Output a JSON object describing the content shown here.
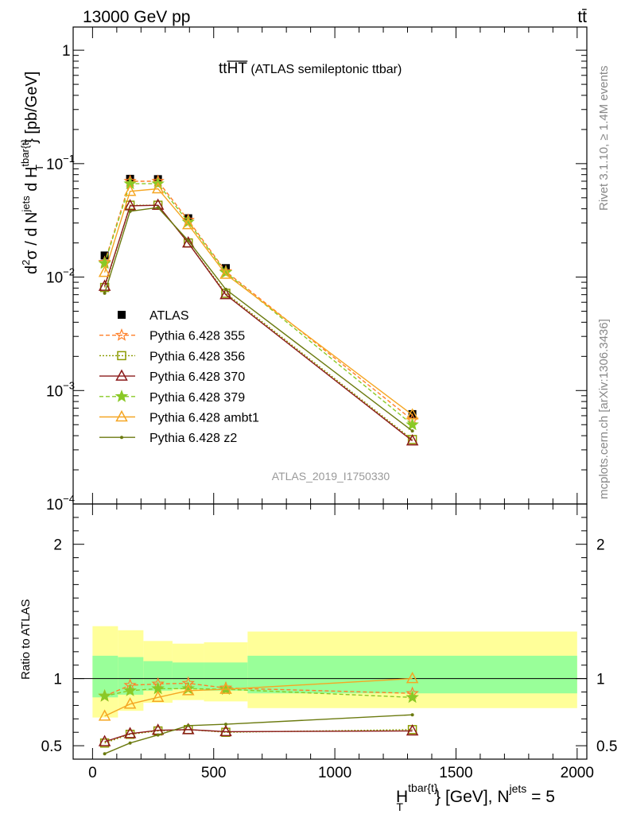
{
  "header": {
    "energy_label": "13000 GeV pp",
    "process_label": "tt̄"
  },
  "side": {
    "rivet_label": "Rivet 3.1.10, ≥ 1.4M events",
    "source_label": "mcplots.cern.ch [arXiv:1306.3436]"
  },
  "chart_data": [
    {
      "type": "line",
      "title": "tt̄HT (ATLAS semileptonic ttbar)",
      "title_main": "tt",
      "title_over": "HT",
      "title_rest": " (ATLAS semileptonic ttbar)",
      "analysis_id": "ATLAS_2019_I1750330",
      "ylabel": "d²σ / d N^jets d H_T^tbar{t} [pb/GeV]",
      "ylabel_parts": [
        "d",
        "2",
        "σ / d N",
        "jets",
        " d H",
        "tbar{t}",
        "T",
        "} [pb/GeV]"
      ],
      "yscale": "log",
      "ylim": [
        0.0001,
        1.6
      ],
      "xlim": [
        -80,
        2040
      ],
      "y_tick_labels": [
        {
          "value": 1,
          "base": "1",
          "exp": ""
        },
        {
          "value": 0.1,
          "base": "10",
          "exp": "−1"
        },
        {
          "value": 0.01,
          "base": "10",
          "exp": "−2"
        },
        {
          "value": 0.001,
          "base": "10",
          "exp": "−3"
        },
        {
          "value": 0.0001,
          "base": "10",
          "exp": "−4"
        }
      ],
      "legend_position": "left-middle",
      "series": [
        {
          "name": "ATLAS",
          "color": "#000000",
          "marker": "square",
          "dash": "none",
          "x": [
            50,
            155,
            270,
            395,
            550,
            1320
          ],
          "y": [
            0.0155,
            0.0735,
            0.073,
            0.033,
            0.012,
            0.00062
          ]
        },
        {
          "name": "Pythia 6.428 355",
          "color": "#ff7f27",
          "marker": "star",
          "dash": "dashed",
          "x": [
            50,
            155,
            270,
            395,
            550,
            1320
          ],
          "y": [
            0.0135,
            0.07,
            0.07,
            0.0318,
            0.0112,
            0.00055
          ]
        },
        {
          "name": "Pythia 6.428 356",
          "color": "#8c9a00",
          "marker": "open-square",
          "dash": "dotted",
          "x": [
            50,
            155,
            270,
            395,
            550,
            1320
          ],
          "y": [
            0.0081,
            0.043,
            0.043,
            0.02,
            0.0072,
            0.00037
          ]
        },
        {
          "name": "Pythia 6.428 370",
          "color": "#8b1a1a",
          "marker": "open-triangle",
          "dash": "solid",
          "x": [
            50,
            155,
            270,
            395,
            550,
            1320
          ],
          "y": [
            0.0083,
            0.0425,
            0.043,
            0.02,
            0.007,
            0.00036
          ]
        },
        {
          "name": "Pythia 6.428 379",
          "color": "#8ac926",
          "marker": "star",
          "dash": "dashed",
          "x": [
            50,
            155,
            270,
            395,
            550,
            1320
          ],
          "y": [
            0.0132,
            0.0665,
            0.0665,
            0.0306,
            0.011,
            0.0005
          ]
        },
        {
          "name": "Pythia 6.428 ambt1",
          "color": "#f5a623",
          "marker": "open-triangle",
          "dash": "solid",
          "x": [
            50,
            155,
            270,
            395,
            550,
            1320
          ],
          "y": [
            0.011,
            0.057,
            0.06,
            0.029,
            0.0106,
            0.00061
          ]
        },
        {
          "name": "Pythia 6.428 z2",
          "color": "#6b7a0f",
          "marker": "dot",
          "dash": "solid",
          "x": [
            50,
            155,
            270,
            395,
            550,
            1320
          ],
          "y": [
            0.0072,
            0.038,
            0.041,
            0.021,
            0.0078,
            0.00044
          ]
        }
      ]
    },
    {
      "type": "line",
      "ylabel": "Ratio to ATLAS",
      "xlabel_parts": [
        "H",
        "tbar{t}",
        "T",
        "} [GeV], N",
        "jets",
        " = 5"
      ],
      "ylim": [
        0.4,
        2.3
      ],
      "xlim": [
        -80,
        2040
      ],
      "y_ticks": [
        0.5,
        1,
        2
      ],
      "x_ticks": [
        0,
        500,
        1000,
        1500,
        2000
      ],
      "bands": {
        "bins": [
          [
            0,
            105
          ],
          [
            105,
            210
          ],
          [
            210,
            330
          ],
          [
            330,
            460
          ],
          [
            460,
            640
          ],
          [
            640,
            2000
          ]
        ],
        "inner": [
          [
            0.86,
            1.17
          ],
          [
            0.88,
            1.16
          ],
          [
            0.91,
            1.13
          ],
          [
            0.92,
            1.12
          ],
          [
            0.91,
            1.12
          ],
          [
            0.89,
            1.17
          ]
        ],
        "outer": [
          [
            0.71,
            1.39
          ],
          [
            0.76,
            1.36
          ],
          [
            0.82,
            1.28
          ],
          [
            0.84,
            1.26
          ],
          [
            0.83,
            1.27
          ],
          [
            0.78,
            1.35
          ]
        ],
        "inner_color": "#99ff99",
        "outer_color": "#ffff99"
      },
      "series": [
        {
          "name": "Pythia 6.428 355",
          "color": "#ff7f27",
          "marker": "star",
          "dash": "dashed",
          "x": [
            50,
            155,
            270,
            395,
            550,
            1320
          ],
          "y": [
            0.87,
            0.95,
            0.96,
            0.965,
            0.93,
            0.89
          ]
        },
        {
          "name": "Pythia 6.428 356",
          "color": "#8c9a00",
          "marker": "open-square",
          "dash": "dotted",
          "x": [
            50,
            155,
            270,
            395,
            550,
            1320
          ],
          "y": [
            0.52,
            0.585,
            0.61,
            0.62,
            0.6,
            0.62
          ]
        },
        {
          "name": "Pythia 6.428 370",
          "color": "#8b1a1a",
          "marker": "open-triangle",
          "dash": "solid",
          "x": [
            50,
            155,
            270,
            395,
            550,
            1320
          ],
          "y": [
            0.53,
            0.59,
            0.615,
            0.62,
            0.605,
            0.61
          ]
        },
        {
          "name": "Pythia 6.428 379",
          "color": "#8ac926",
          "marker": "star",
          "dash": "dashed",
          "x": [
            50,
            155,
            270,
            395,
            550,
            1320
          ],
          "y": [
            0.87,
            0.91,
            0.925,
            0.925,
            0.92,
            0.86
          ]
        },
        {
          "name": "Pythia 6.428 ambt1",
          "color": "#f5a623",
          "marker": "open-triangle",
          "dash": "solid",
          "x": [
            50,
            155,
            270,
            395,
            550,
            1320
          ],
          "y": [
            0.72,
            0.81,
            0.86,
            0.91,
            0.92,
            1.0
          ]
        },
        {
          "name": "Pythia 6.428 z2",
          "color": "#6b7a0f",
          "marker": "dot",
          "dash": "solid",
          "x": [
            50,
            155,
            270,
            395,
            550,
            1320
          ],
          "y": [
            0.44,
            0.52,
            0.58,
            0.65,
            0.66,
            0.73
          ]
        }
      ]
    }
  ]
}
